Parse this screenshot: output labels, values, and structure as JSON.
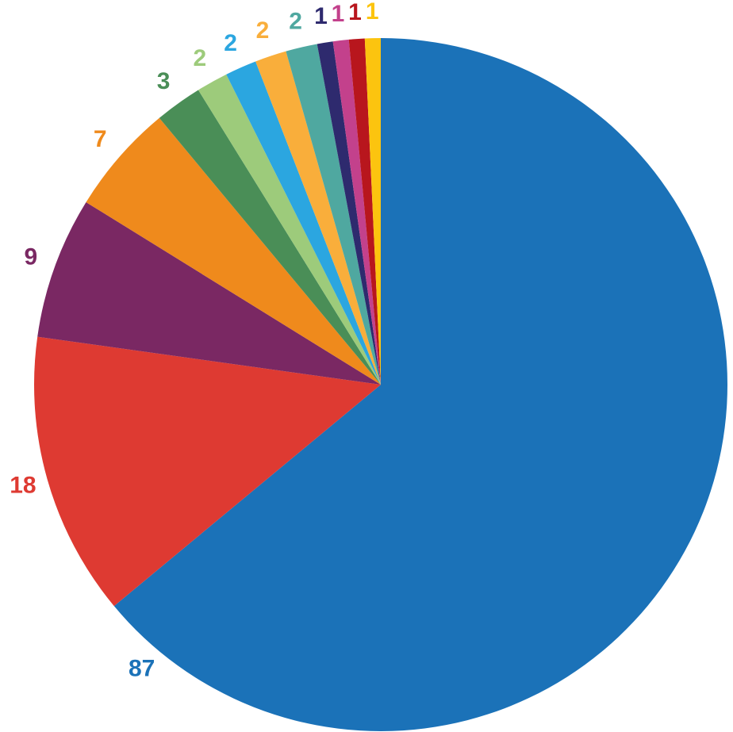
{
  "chart_data": {
    "type": "pie",
    "values": [
      87,
      18,
      9,
      7,
      3,
      2,
      2,
      2,
      2,
      1,
      1,
      1,
      1
    ],
    "colors": [
      "#1b72b8",
      "#de3a32",
      "#7a2863",
      "#ef8a1c",
      "#4a8e57",
      "#9dcb7b",
      "#2ba6e0",
      "#f9ae3b",
      "#4fa8a0",
      "#2e2a6e",
      "#c3418c",
      "#b8161d",
      "#fcc40f"
    ]
  }
}
